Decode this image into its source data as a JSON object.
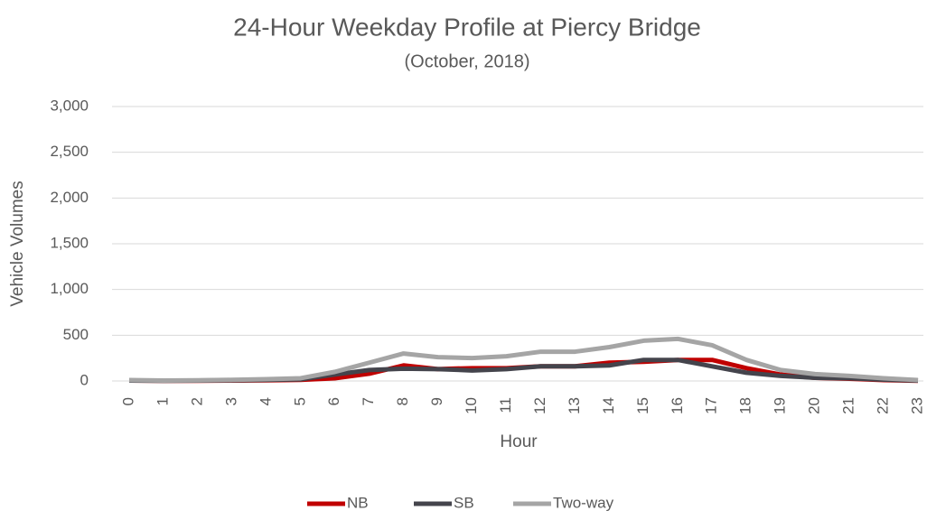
{
  "chart_data": {
    "type": "line",
    "title": "24-Hour Weekday Profile at Piercy Bridge",
    "subtitle": "(October, 2018)",
    "x_label": "Hour",
    "y_label": "Vehicle Volumes",
    "categories": [
      "0",
      "1",
      "2",
      "3",
      "4",
      "5",
      "6",
      "7",
      "8",
      "9",
      "10",
      "11",
      "12",
      "13",
      "14",
      "15",
      "16",
      "17",
      "18",
      "19",
      "20",
      "21",
      "22",
      "23"
    ],
    "series": [
      {
        "name": "NB",
        "color": "#c00000",
        "values": [
          5,
          2,
          3,
          5,
          8,
          12,
          30,
          80,
          170,
          130,
          140,
          140,
          160,
          160,
          200,
          210,
          230,
          230,
          140,
          70,
          35,
          25,
          10,
          3
        ]
      },
      {
        "name": "SB",
        "color": "#44444c",
        "values": [
          5,
          3,
          5,
          7,
          12,
          18,
          70,
          120,
          135,
          130,
          115,
          130,
          160,
          160,
          170,
          230,
          230,
          160,
          90,
          55,
          35,
          30,
          15,
          5
        ]
      },
      {
        "name": "Two-way",
        "color": "#a5a5a5",
        "values": [
          10,
          5,
          8,
          12,
          20,
          30,
          100,
          200,
          300,
          260,
          250,
          270,
          320,
          320,
          370,
          440,
          460,
          390,
          230,
          120,
          75,
          55,
          30,
          10
        ]
      }
    ],
    "ylim": [
      0,
      3000
    ],
    "yticks": [
      0,
      500,
      {
        "value": 1000,
        "label": "1,000"
      },
      {
        "value": 1500,
        "label": "1,500"
      },
      {
        "value": 2000,
        "label": "2,000"
      },
      {
        "value": 2500,
        "label": "2,500"
      },
      {
        "value": 3000,
        "label": "3,000"
      }
    ],
    "grid": true,
    "legend": "bottom"
  }
}
